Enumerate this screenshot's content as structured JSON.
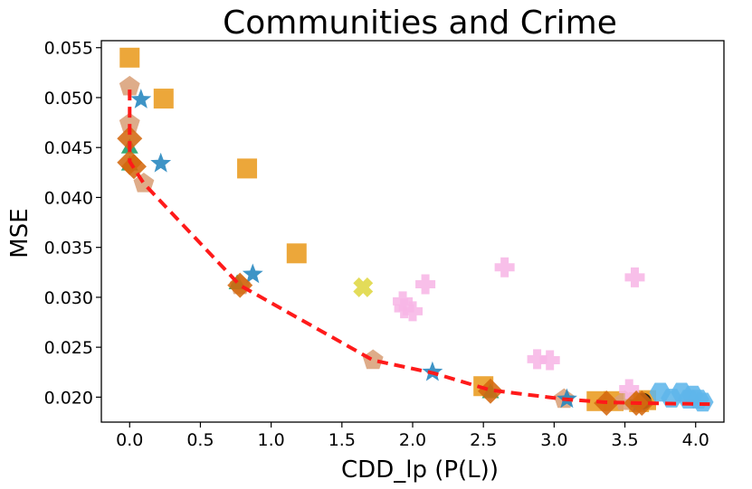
{
  "chart_data": {
    "type": "scatter",
    "title": "Communities and Crime",
    "xlabel": "CDD_lp (P(L))",
    "ylabel": "MSE",
    "xlim": [
      -0.2,
      4.2
    ],
    "ylim": [
      0.0175,
      0.0557
    ],
    "x_ticks": [
      "0.0",
      "0.5",
      "1.0",
      "1.5",
      "2.0",
      "2.5",
      "3.0",
      "3.5",
      "4.0"
    ],
    "x_tick_values": [
      0.0,
      0.5,
      1.0,
      1.5,
      2.0,
      2.5,
      3.0,
      3.5,
      4.0
    ],
    "y_ticks": [
      "0.020",
      "0.025",
      "0.030",
      "0.035",
      "0.040",
      "0.045",
      "0.050",
      "0.055"
    ],
    "y_tick_values": [
      0.02,
      0.025,
      0.03,
      0.035,
      0.04,
      0.045,
      0.05,
      0.055
    ],
    "grid": false,
    "frontier": {
      "color": "#ff1a1a",
      "style": "dashed",
      "points": [
        [
          0.0,
          0.0508
        ],
        [
          0.0,
          0.0436
        ],
        [
          0.1,
          0.0414
        ],
        [
          0.78,
          0.0312
        ],
        [
          1.72,
          0.0237
        ],
        [
          2.15,
          0.0224
        ],
        [
          2.55,
          0.0207
        ],
        [
          3.07,
          0.0198
        ],
        [
          3.35,
          0.0195
        ],
        [
          3.6,
          0.0194
        ],
        [
          4.1,
          0.0193
        ]
      ]
    },
    "series": [
      {
        "marker": "square",
        "color": "#e99b1f",
        "points": [
          [
            0.0,
            0.054
          ],
          [
            0.24,
            0.0499
          ],
          [
            0.83,
            0.0429
          ],
          [
            1.18,
            0.0344
          ],
          [
            2.5,
            0.0211
          ],
          [
            3.3,
            0.0196
          ],
          [
            3.42,
            0.0196
          ],
          [
            3.6,
            0.0195
          ],
          [
            3.65,
            0.0197
          ]
        ]
      },
      {
        "marker": "pentagon",
        "color": "#d9a079",
        "points": [
          [
            0.0,
            0.0511
          ],
          [
            0.0,
            0.0474
          ],
          [
            0.1,
            0.0414
          ],
          [
            0.78,
            0.0312
          ],
          [
            1.72,
            0.0237
          ],
          [
            3.07,
            0.0198
          ],
          [
            3.5,
            0.0196
          ]
        ]
      },
      {
        "marker": "star",
        "color": "#2385be",
        "points": [
          [
            0.08,
            0.0498
          ],
          [
            0.22,
            0.0434
          ],
          [
            0.87,
            0.0323
          ],
          [
            2.14,
            0.0225
          ],
          [
            3.09,
            0.0198
          ],
          [
            3.6,
            0.0194
          ]
        ]
      },
      {
        "marker": "triangle",
        "color": "#1a9e67",
        "points": [
          [
            0.0,
            0.0449
          ],
          [
            0.0,
            0.0432
          ],
          [
            0.76,
            0.0313
          ],
          [
            2.55,
            0.0204
          ],
          [
            3.6,
            0.0195
          ]
        ]
      },
      {
        "marker": "x-cross",
        "color": "#dfd742",
        "points": [
          [
            1.65,
            0.031
          ]
        ]
      },
      {
        "marker": "plus",
        "color": "#f7b6e6",
        "points": [
          [
            1.93,
            0.0296
          ],
          [
            1.94,
            0.0289
          ],
          [
            2.0,
            0.0286
          ],
          [
            2.09,
            0.0313
          ],
          [
            2.65,
            0.033
          ],
          [
            2.88,
            0.0238
          ],
          [
            2.97,
            0.0237
          ],
          [
            3.53,
            0.0208
          ],
          [
            3.57,
            0.032
          ]
        ]
      },
      {
        "marker": "hexagon",
        "color": "#5fb6ea",
        "points": [
          [
            3.75,
            0.0205
          ],
          [
            3.83,
            0.0199
          ],
          [
            3.9,
            0.0205
          ],
          [
            3.95,
            0.0198
          ],
          [
            3.98,
            0.0202
          ],
          [
            4.02,
            0.0198
          ],
          [
            4.05,
            0.0195
          ]
        ]
      },
      {
        "marker": "circle",
        "color": "#111111",
        "points": [
          [
            3.63,
            0.0196
          ]
        ]
      },
      {
        "marker": "diamond",
        "color": "#d4690f",
        "points": [
          [
            0.0,
            0.0459
          ],
          [
            0.0,
            0.0435
          ],
          [
            0.03,
            0.0431
          ],
          [
            0.78,
            0.0312
          ],
          [
            2.55,
            0.0206
          ],
          [
            3.37,
            0.0194
          ],
          [
            3.58,
            0.0194
          ],
          [
            3.62,
            0.0194
          ]
        ]
      }
    ]
  }
}
